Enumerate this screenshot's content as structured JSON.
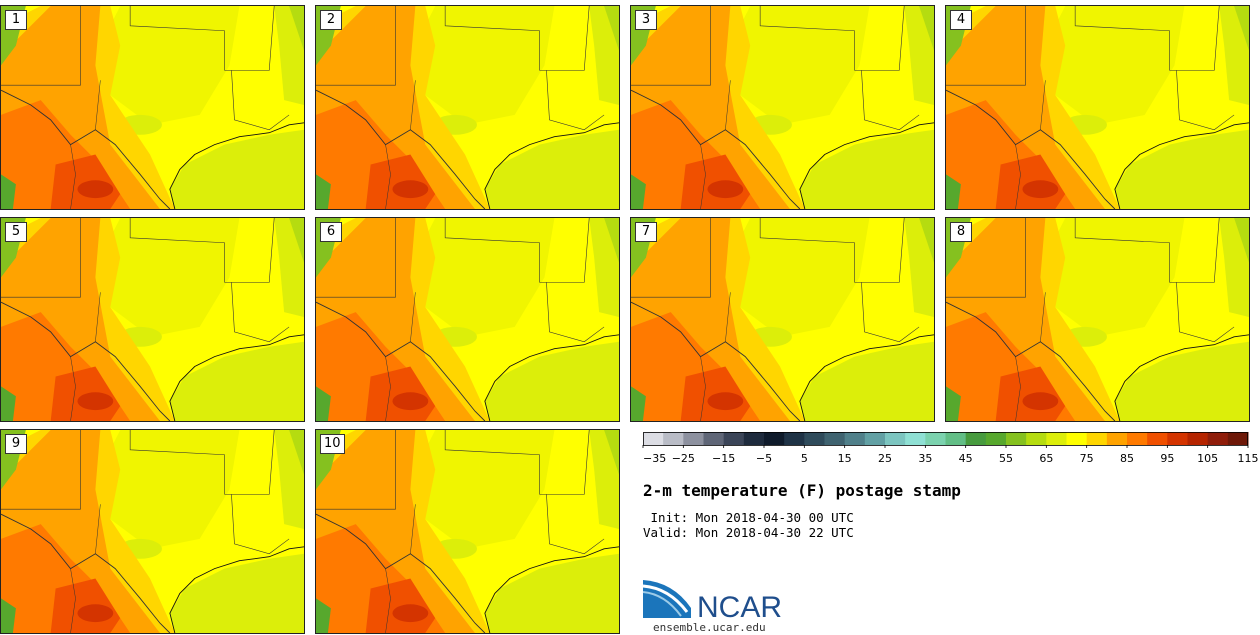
{
  "stamps": [
    {
      "label": "1"
    },
    {
      "label": "2"
    },
    {
      "label": "3"
    },
    {
      "label": "4"
    },
    {
      "label": "5"
    },
    {
      "label": "6"
    },
    {
      "label": "7"
    },
    {
      "label": "8"
    },
    {
      "label": "9"
    },
    {
      "label": "10"
    }
  ],
  "colorbar": {
    "tick_labels": [
      "−35",
      "−25",
      "−15",
      "−5",
      "5",
      "15",
      "25",
      "35",
      "45",
      "55",
      "65",
      "75",
      "85",
      "95",
      "105",
      "115"
    ],
    "colors": [
      "#dcdde4",
      "#b9bcc6",
      "#8d919f",
      "#5f6677",
      "#3b4558",
      "#1e2b3d",
      "#0f1b2b",
      "#1f3346",
      "#2f4b5b",
      "#3f6370",
      "#50808a",
      "#62a0a4",
      "#7cc5c0",
      "#8fe0d4",
      "#7bd2ae",
      "#62be86",
      "#479b3e",
      "#57a82d",
      "#85c11f",
      "#b5dc10",
      "#dcee0a",
      "#ffff00",
      "#ffd600",
      "#ffa300",
      "#ff7a00",
      "#f05000",
      "#d43400",
      "#b52400",
      "#8f1d0a",
      "#6e1808"
    ]
  },
  "title": "2-m temperature (F) postage stamp",
  "init_text": " Init: Mon 2018-04-30 00 UTC",
  "valid_text": "Valid: Mon 2018-04-30 22 UTC",
  "logo": {
    "text": "NCAR",
    "url": "ensemble.ucar.edu"
  }
}
